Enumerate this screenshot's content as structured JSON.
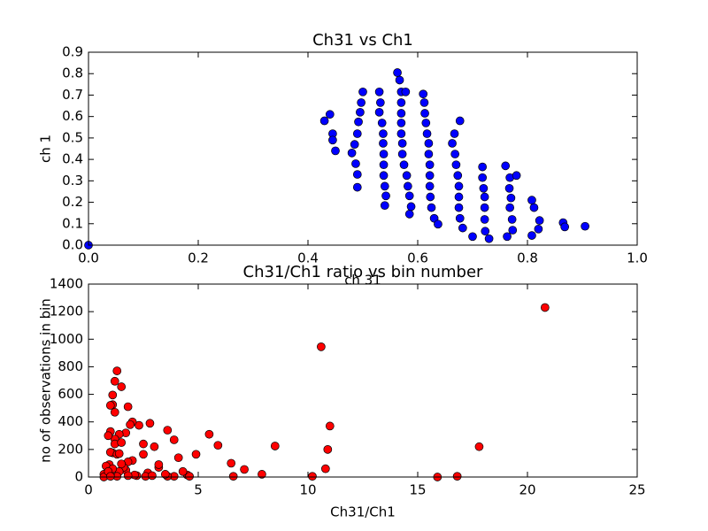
{
  "chart_data": [
    {
      "type": "scatter",
      "title": "Ch31 vs Ch1",
      "xlabel": "ch 31",
      "ylabel": "ch 1",
      "color": "#0000ff",
      "x": [
        0,
        0.43,
        0.44,
        0.445,
        0.445,
        0.45,
        0.48,
        0.485,
        0.487,
        0.49,
        0.49,
        0.49,
        0.492,
        0.495,
        0.497,
        0.5,
        0.53,
        0.53,
        0.532,
        0.535,
        0.537,
        0.537,
        0.538,
        0.538,
        0.538,
        0.54,
        0.54,
        0.542,
        0.563,
        0.567,
        0.57,
        0.57,
        0.57,
        0.57,
        0.57,
        0.572,
        0.572,
        0.575,
        0.578,
        0.58,
        0.582,
        0.585,
        0.585,
        0.588,
        0.61,
        0.612,
        0.613,
        0.615,
        0.617,
        0.62,
        0.62,
        0.622,
        0.622,
        0.622,
        0.623,
        0.625,
        0.63,
        0.637,
        0.663,
        0.667,
        0.668,
        0.67,
        0.673,
        0.675,
        0.675,
        0.675,
        0.677,
        0.677,
        0.682,
        0.7,
        0.718,
        0.718,
        0.72,
        0.722,
        0.722,
        0.722,
        0.723,
        0.73,
        0.76,
        0.763,
        0.767,
        0.768,
        0.768,
        0.77,
        0.772,
        0.773,
        0.78,
        0.808,
        0.808,
        0.812,
        0.82,
        0.822,
        0.865,
        0.868,
        0.905
      ],
      "values": [
        0,
        0.58,
        0.61,
        0.52,
        0.49,
        0.44,
        0.43,
        0.47,
        0.38,
        0.27,
        0.33,
        0.52,
        0.575,
        0.62,
        0.665,
        0.715,
        0.715,
        0.62,
        0.665,
        0.57,
        0.52,
        0.475,
        0.425,
        0.375,
        0.325,
        0.275,
        0.185,
        0.23,
        0.805,
        0.77,
        0.665,
        0.715,
        0.615,
        0.57,
        0.52,
        0.475,
        0.425,
        0.375,
        0.715,
        0.325,
        0.275,
        0.23,
        0.145,
        0.18,
        0.705,
        0.665,
        0.615,
        0.57,
        0.52,
        0.475,
        0.425,
        0.375,
        0.325,
        0.275,
        0.225,
        0.175,
        0.125,
        0.098,
        0.475,
        0.52,
        0.425,
        0.375,
        0.325,
        0.275,
        0.225,
        0.175,
        0.58,
        0.125,
        0.08,
        0.04,
        0.365,
        0.315,
        0.265,
        0.175,
        0.225,
        0.12,
        0.065,
        0.03,
        0.37,
        0.04,
        0.265,
        0.175,
        0.315,
        0.22,
        0.12,
        0.07,
        0.325,
        0.21,
        0.045,
        0.175,
        0.075,
        0.115,
        0.105,
        0.085,
        0.088
      ],
      "xlim": [
        0,
        1
      ],
      "ylim": [
        0,
        0.9
      ],
      "xticks": [
        {
          "value": 0,
          "label": "0.0"
        },
        0.2,
        0.4,
        0.6,
        0.8,
        {
          "value": 1,
          "label": "1.0"
        }
      ],
      "yticks": [
        {
          "value": 0,
          "label": "0.0"
        },
        0.1,
        0.2,
        0.3,
        0.4,
        0.5,
        0.6,
        0.7,
        0.8,
        0.9
      ]
    },
    {
      "type": "scatter",
      "title": "Ch31/Ch1 ratio vs bin number",
      "xlabel": "Ch31/Ch1",
      "ylabel": "no of observations in bin",
      "color": "#ff0000",
      "x": [
        20.8,
        10.6,
        17.8,
        11,
        10.9,
        10.8,
        10.2,
        16.8,
        15.9,
        8.5,
        7.9,
        7.1,
        6.6,
        6.5,
        5.9,
        5.5,
        4.9,
        4.5,
        4.3,
        4.1,
        3.9,
        3.9,
        3.6,
        3.6,
        3.2,
        3.2,
        3.0,
        2.8,
        2.7,
        2.6,
        2.5,
        2.5,
        2.3,
        2.2,
        2.1,
        2.0,
        2.0,
        1.9,
        1.8,
        1.8,
        1.7,
        1.7,
        1.6,
        1.5,
        1.4,
        1.4,
        1.3,
        1.3,
        1.2,
        1.2,
        1.2,
        1.2,
        1.1,
        1.1,
        1.1,
        1.0,
        1.0,
        0.95,
        0.9,
        1.0,
        1.3,
        1.4,
        1.5,
        0.8,
        0.7,
        0.7,
        1.0,
        1.1,
        1.8,
        2.9,
        3.5,
        4.6,
        1.5,
        0.9,
        1.0
      ],
      "values": [
        1230,
        945,
        220,
        370,
        200,
        60,
        5,
        5,
        0,
        225,
        20,
        55,
        5,
        100,
        230,
        310,
        165,
        15,
        40,
        140,
        5,
        270,
        340,
        5,
        70,
        90,
        220,
        390,
        30,
        5,
        165,
        240,
        375,
        10,
        15,
        400,
        120,
        380,
        510,
        110,
        50,
        320,
        70,
        655,
        40,
        310,
        770,
        5,
        695,
        470,
        275,
        240,
        175,
        595,
        525,
        520,
        330,
        90,
        300,
        180,
        165,
        170,
        250,
        80,
        20,
        0,
        20,
        60,
        10,
        10,
        20,
        5,
        95,
        40,
        5
      ],
      "xlim": [
        0,
        25
      ],
      "ylim": [
        0,
        1400
      ],
      "xticks": [
        0,
        5,
        10,
        15,
        20,
        25
      ],
      "yticks": [
        0,
        200,
        400,
        600,
        800,
        1000,
        1200,
        1400
      ]
    }
  ]
}
